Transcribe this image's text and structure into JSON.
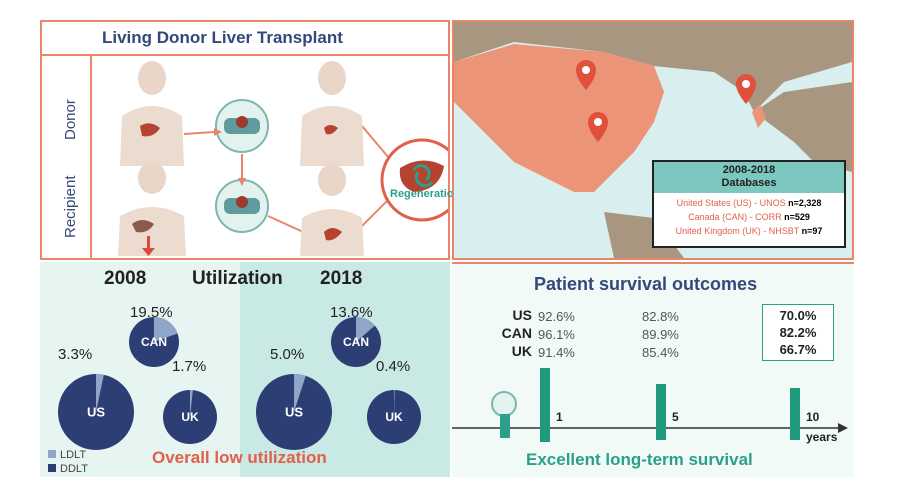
{
  "top_left": {
    "title": "Living Donor Liver Transplant",
    "donor_label": "Donor",
    "recipient_label": "Recipient",
    "regeneration_label": "Regeneration"
  },
  "map": {
    "db_title_line1": "2008-2018",
    "db_title_line2": "Databases",
    "rows": [
      {
        "name": "United States (US) - UNOS",
        "n": "n=2,328"
      },
      {
        "name": "Canada (CAN) - CORR",
        "n": "n=529"
      },
      {
        "name": "United Kingdom (UK) - NHSBT",
        "n": "n=97"
      }
    ]
  },
  "utilization": {
    "year_a": "2008",
    "label": "Utilization",
    "year_b": "2018",
    "footer": "Overall low utilization",
    "legend": [
      {
        "label": "LDLT",
        "color": "#8fa6c8"
      },
      {
        "label": "DDLT",
        "color": "#2c3e74"
      }
    ]
  },
  "chart_data": {
    "type": "pie",
    "title": "Utilization",
    "legend": [
      "LDLT",
      "DDLT"
    ],
    "charts": [
      {
        "year": "2008",
        "country": "US",
        "ldlt_pct": 3.3,
        "label": "3.3%"
      },
      {
        "year": "2008",
        "country": "CAN",
        "ldlt_pct": 19.5,
        "label": "19.5%"
      },
      {
        "year": "2008",
        "country": "UK",
        "ldlt_pct": 1.7,
        "label": "1.7%"
      },
      {
        "year": "2018",
        "country": "US",
        "ldlt_pct": 5.0,
        "label": "5.0%"
      },
      {
        "year": "2018",
        "country": "CAN",
        "ldlt_pct": 13.6,
        "label": "13.6%"
      },
      {
        "year": "2018",
        "country": "UK",
        "ldlt_pct": 0.4,
        "label": "0.4%"
      }
    ]
  },
  "survival": {
    "title": "Patient survival outcomes",
    "footer": "Excellent long-term survival",
    "years_label": "years",
    "ticks": [
      "1",
      "5",
      "10"
    ],
    "rows": [
      {
        "country": "US",
        "y1": "92.6%",
        "y5": "82.8%",
        "y10": "70.0%"
      },
      {
        "country": "CAN",
        "y1": "96.1%",
        "y5": "89.9%",
        "y10": "82.2%"
      },
      {
        "country": "UK",
        "y1": "91.4%",
        "y5": "85.4%",
        "y10": "66.7%"
      }
    ]
  },
  "colors": {
    "navy": "#2c3e74",
    "ldlt": "#8fa6c8",
    "coral": "#e8866a",
    "teal": "#2aa08a",
    "map_highlight": "#ec9478",
    "land": "#a89680"
  }
}
